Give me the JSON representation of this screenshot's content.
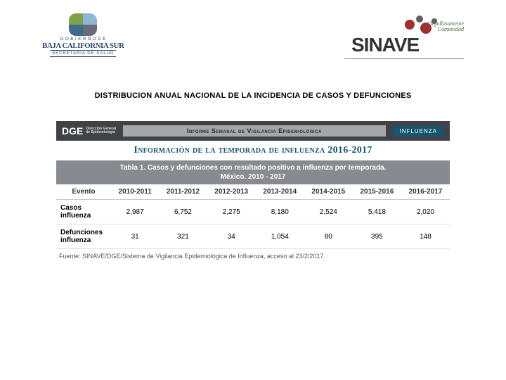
{
  "logos": {
    "bcs": {
      "line1": "G O B I E R N O   D E",
      "line2": "BAJA CALIFORNIA SUR",
      "line3": "SECRETARIA DE SALUD"
    },
    "sinave": {
      "script1": "Orgullosamente",
      "script2": "Comunidad",
      "text": "SINAVE"
    }
  },
  "page_title": "DISTRIBUCION ANUAL NACIONAL DE LA INCIDENCIA DE CASOS Y DEFUNCIONES",
  "report": {
    "dge_logo": "DGE",
    "dge_sub1": "Dirección General",
    "dge_sub2": "de Epidemiología",
    "banner_mid": "Informe Semanal de Vigilancia Epidemiológica",
    "banner_right": "INFLUENZA",
    "section_title": "Información de la temporada de influenza 2016-2017",
    "table_caption_l1": "Tabla 1. Casos y defunciones con resultado positivo a influenza por temporada.",
    "table_caption_l2": "México. 2010 - 2017",
    "table": {
      "columns": [
        "Evento",
        "2010-2011",
        "2011-2012",
        "2012-2013",
        "2013-2014",
        "2014-2015",
        "2015-2016",
        "2016-2017"
      ],
      "rows": [
        {
          "label": "Casos influenza",
          "values": [
            "2,987",
            "6,752",
            "2,275",
            "8,180",
            "2,524",
            "5,418",
            "2,020"
          ]
        },
        {
          "label": "Defunciones influenza",
          "values": [
            "31",
            "321",
            "34",
            "1,054",
            "80",
            "395",
            "148"
          ]
        }
      ]
    },
    "fuente": "Fuente: SINAVE/DGE/Sistema de Vigilancia Epidemiológica de Influenza, acceso al 23/2/2017."
  },
  "colors": {
    "dge_bar": "#404248",
    "dge_mid": "#a4a6ab",
    "dge_right": "#17556f",
    "table_header_bg": "#878a8f",
    "section_title": "#17556f"
  }
}
